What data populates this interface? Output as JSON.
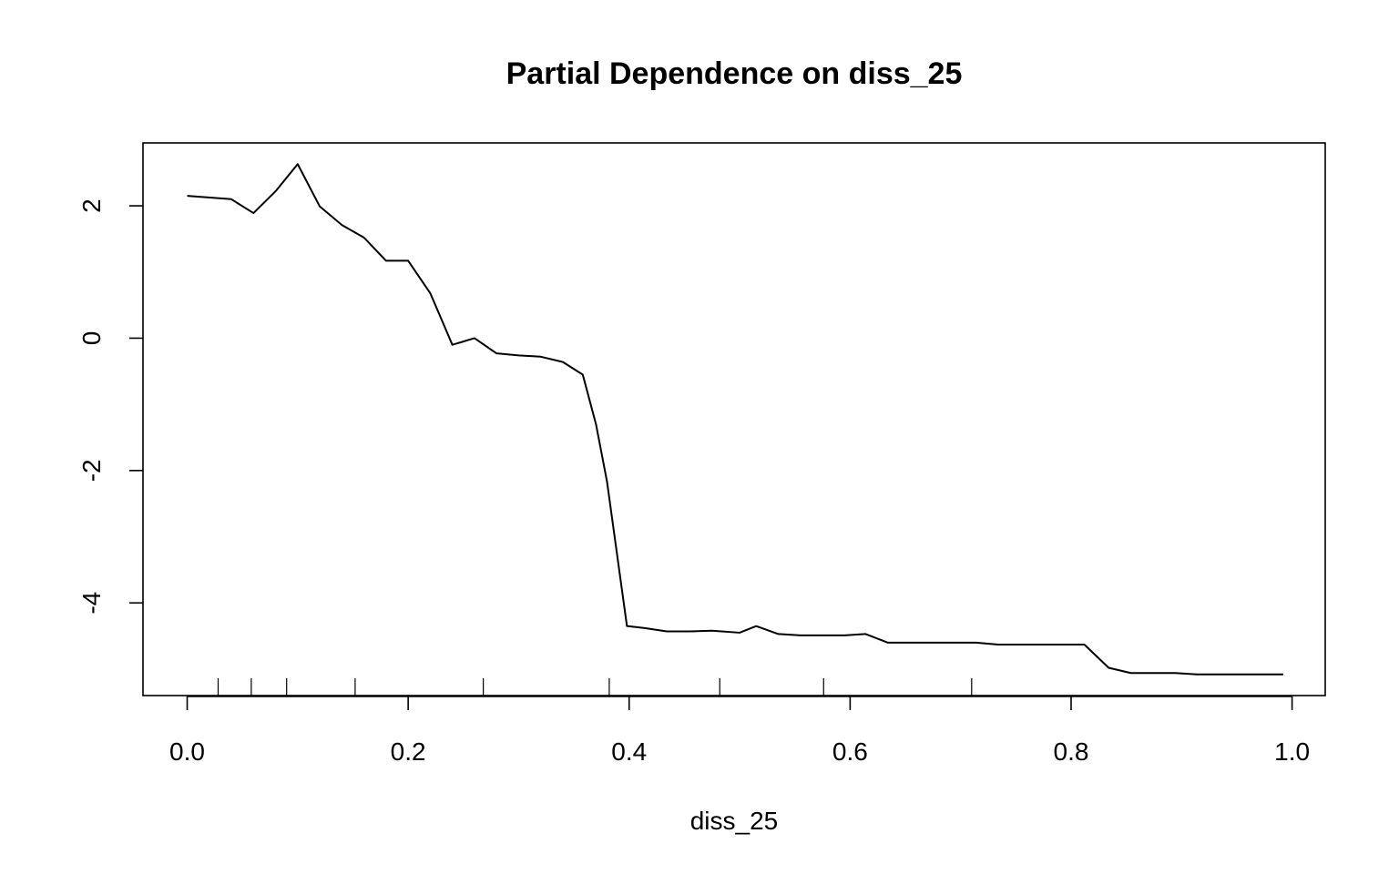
{
  "chart_data": {
    "type": "line",
    "title": "Partial Dependence on diss_25",
    "xlabel": "diss_25",
    "ylabel": "",
    "xlim": [
      -0.04,
      1.03
    ],
    "ylim": [
      -5.4,
      2.95
    ],
    "x_ticks": [
      0.0,
      0.2,
      0.4,
      0.6,
      0.8,
      1.0
    ],
    "x_tick_labels": [
      "0.0",
      "0.2",
      "0.4",
      "0.6",
      "0.8",
      "1.0"
    ],
    "y_ticks": [
      2,
      0,
      -2,
      -4
    ],
    "y_tick_labels": [
      "2",
      "0",
      "-2",
      "-4"
    ],
    "grid": false,
    "rug_x": [
      0.028,
      0.058,
      0.09,
      0.152,
      0.268,
      0.382,
      0.482,
      0.576,
      0.71
    ],
    "series": [
      {
        "x": [
          0.0,
          0.04,
          0.06,
          0.08,
          0.1,
          0.12,
          0.14,
          0.16,
          0.18,
          0.2,
          0.22,
          0.24,
          0.26,
          0.28,
          0.3,
          0.32,
          0.34,
          0.358,
          0.37,
          0.38,
          0.398,
          0.414,
          0.434,
          0.455,
          0.475,
          0.5,
          0.515,
          0.535,
          0.555,
          0.575,
          0.595,
          0.614,
          0.634,
          0.654,
          0.674,
          0.694,
          0.714,
          0.734,
          0.754,
          0.774,
          0.794,
          0.812,
          0.834,
          0.854,
          0.874,
          0.894,
          0.914,
          0.934,
          0.954,
          0.974,
          0.992
        ],
        "y": [
          2.15,
          2.1,
          1.89,
          2.22,
          2.63,
          1.99,
          1.71,
          1.52,
          1.17,
          1.17,
          0.68,
          -0.1,
          0.0,
          -0.23,
          -0.26,
          -0.28,
          -0.36,
          -0.55,
          -1.3,
          -2.17,
          -4.35,
          -4.38,
          -4.43,
          -4.43,
          -4.42,
          -4.45,
          -4.35,
          -4.47,
          -4.49,
          -4.49,
          -4.49,
          -4.47,
          -4.6,
          -4.6,
          -4.6,
          -4.6,
          -4.6,
          -4.63,
          -4.63,
          -4.63,
          -4.63,
          -4.63,
          -4.98,
          -5.06,
          -5.06,
          -5.06,
          -5.08,
          -5.08,
          -5.08,
          -5.08,
          -5.08
        ]
      }
    ]
  }
}
